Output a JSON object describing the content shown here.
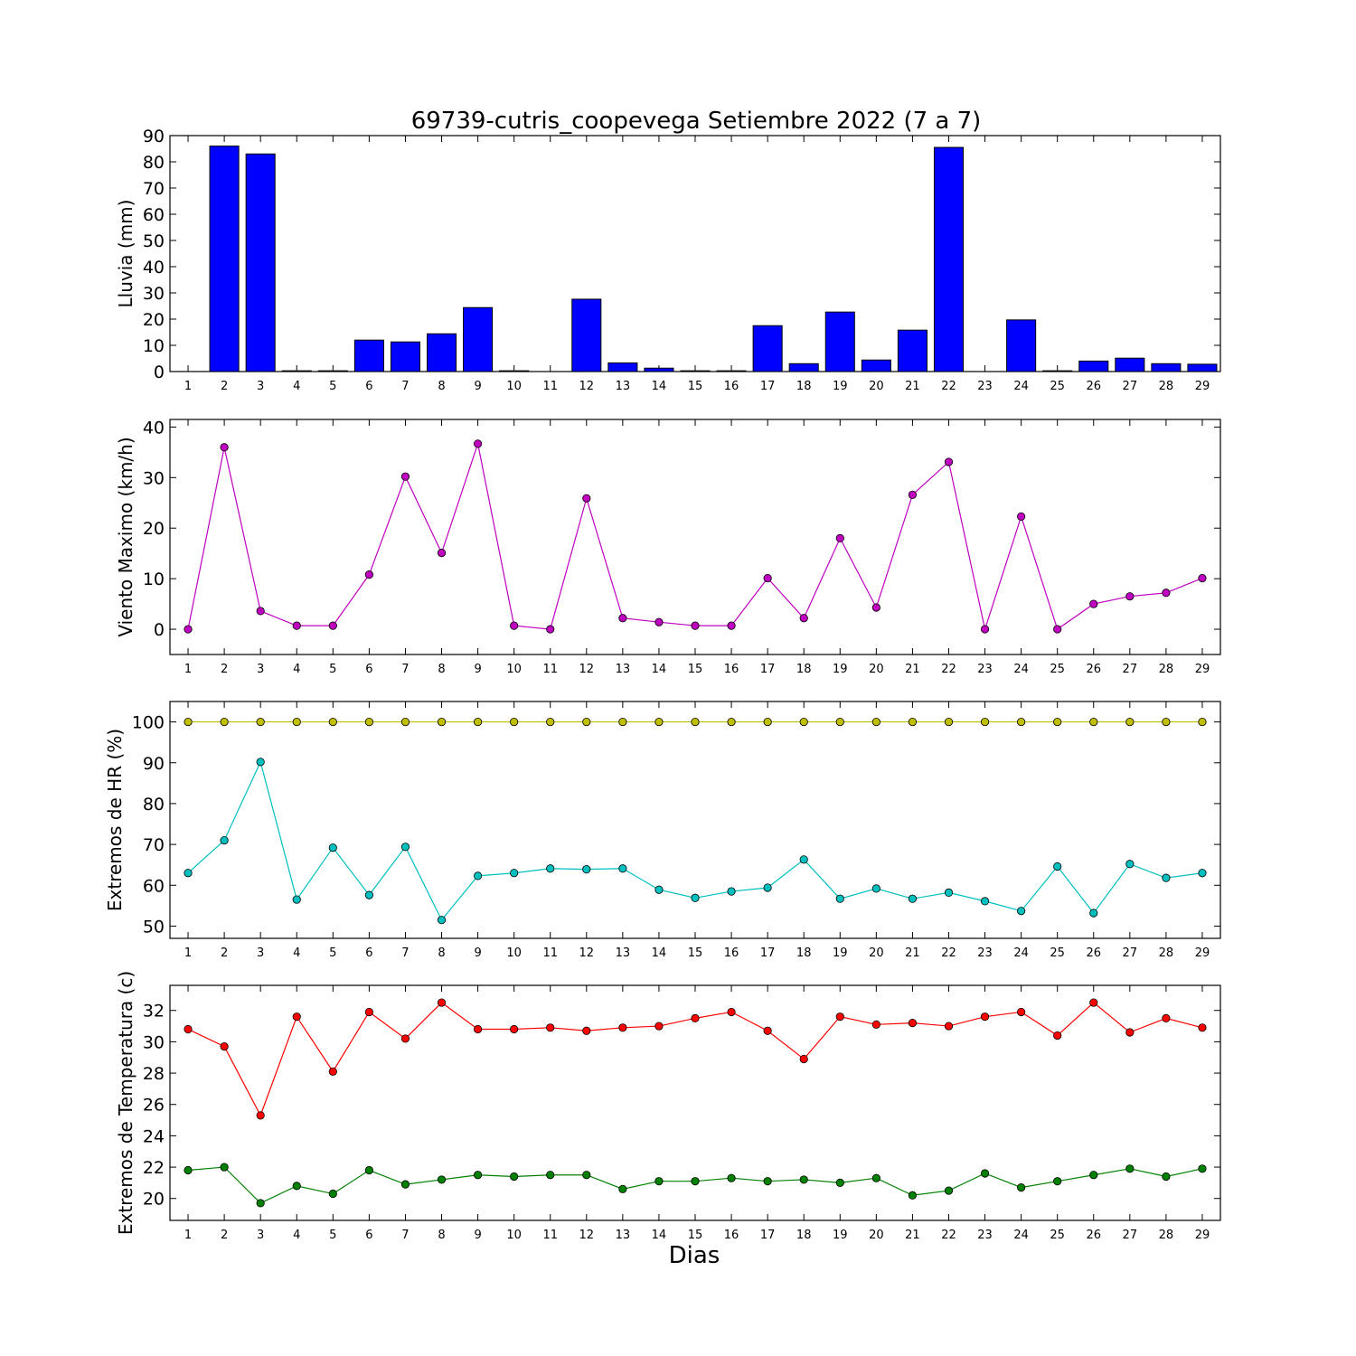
{
  "figure": {
    "title": "69739-cutris_coopevega Setiembre 2022  (7 a 7)",
    "xlabel": "Dias"
  },
  "chart_data": [
    {
      "type": "bar",
      "ylabel": "Lluvia (mm)",
      "ylim": [
        0,
        90
      ],
      "yticks": [
        0,
        10,
        20,
        30,
        40,
        50,
        60,
        70,
        80,
        90
      ],
      "categories": [
        1,
        2,
        3,
        4,
        5,
        6,
        7,
        8,
        9,
        10,
        11,
        12,
        13,
        14,
        15,
        16,
        17,
        18,
        19,
        20,
        21,
        22,
        23,
        24,
        25,
        26,
        27,
        28,
        29
      ],
      "series": [
        {
          "color": "#0000ff",
          "values": [
            0,
            86,
            83,
            0.3,
            0.3,
            12,
            11.3,
            14.4,
            24.4,
            0.3,
            0,
            27.6,
            3.3,
            1.3,
            0.3,
            0.3,
            17.5,
            3,
            22.7,
            4.4,
            15.8,
            85.5,
            0,
            19.7,
            0.3,
            4,
            5.1,
            3,
            2.8
          ]
        }
      ]
    },
    {
      "type": "line",
      "ylabel": "Viento Maximo (km/h)",
      "ylim": [
        -5,
        41.5
      ],
      "yticks": [
        0,
        10,
        20,
        30,
        40
      ],
      "x": [
        1,
        2,
        3,
        4,
        5,
        6,
        7,
        8,
        9,
        10,
        11,
        12,
        13,
        14,
        15,
        16,
        17,
        18,
        19,
        20,
        21,
        22,
        23,
        24,
        25,
        26,
        27,
        28,
        29
      ],
      "series": [
        {
          "color": "#bf00bf",
          "values": [
            0,
            36,
            3.6,
            0.7,
            0.7,
            10.8,
            30.2,
            15.1,
            36.7,
            0.7,
            0,
            25.9,
            2.2,
            1.4,
            0.7,
            0.7,
            10.1,
            2.2,
            18,
            4.3,
            26.6,
            33.1,
            0,
            22.3,
            0,
            5,
            6.5,
            7.2,
            10.1
          ]
        }
      ]
    },
    {
      "type": "line",
      "ylabel": "Extremos de HR (%)",
      "ylim": [
        47,
        105
      ],
      "yticks": [
        50,
        60,
        70,
        80,
        90,
        100
      ],
      "x": [
        1,
        2,
        3,
        4,
        5,
        6,
        7,
        8,
        9,
        10,
        11,
        12,
        13,
        14,
        15,
        16,
        17,
        18,
        19,
        20,
        21,
        22,
        23,
        24,
        25,
        26,
        27,
        28,
        29
      ],
      "series": [
        {
          "color": "#bfbf00",
          "values": [
            100,
            100,
            100,
            100,
            100,
            100,
            100,
            100,
            100,
            100,
            100,
            100,
            100,
            100,
            100,
            100,
            100,
            100,
            100,
            100,
            100,
            100,
            100,
            100,
            100,
            100,
            100,
            100,
            100
          ]
        },
        {
          "color": "#00bfbf",
          "values": [
            63,
            71,
            90.2,
            56.5,
            69.2,
            57.6,
            69.4,
            51.5,
            62.3,
            63,
            64.1,
            63.9,
            64.1,
            58.9,
            56.9,
            58.5,
            59.4,
            66.3,
            56.7,
            59.2,
            56.7,
            58.2,
            56.1,
            53.7,
            64.6,
            53.2,
            65.2,
            61.8,
            63
          ]
        }
      ]
    },
    {
      "type": "line",
      "ylabel": "Extremos de Temperatura (c)",
      "ylim": [
        18.6,
        33.6
      ],
      "yticks": [
        20,
        22,
        24,
        26,
        28,
        30,
        32
      ],
      "x": [
        1,
        2,
        3,
        4,
        5,
        6,
        7,
        8,
        9,
        10,
        11,
        12,
        13,
        14,
        15,
        16,
        17,
        18,
        19,
        20,
        21,
        22,
        23,
        24,
        25,
        26,
        27,
        28,
        29
      ],
      "series": [
        {
          "color": "#ff0000",
          "values": [
            30.8,
            29.7,
            25.3,
            31.6,
            28.1,
            31.9,
            30.2,
            32.5,
            30.8,
            30.8,
            30.9,
            30.7,
            30.9,
            31,
            31.5,
            31.9,
            30.7,
            28.9,
            31.6,
            31.1,
            31.2,
            31,
            31.6,
            31.9,
            30.4,
            32.5,
            30.6,
            31.5,
            30.9
          ]
        },
        {
          "color": "#008000",
          "values": [
            21.8,
            22,
            19.7,
            20.8,
            20.3,
            21.8,
            20.9,
            21.2,
            21.5,
            21.4,
            21.5,
            21.5,
            20.6,
            21.1,
            21.1,
            21.3,
            21.1,
            21.2,
            21,
            21.3,
            20.2,
            20.5,
            21.6,
            20.7,
            21.1,
            21.5,
            21.9,
            21.4,
            21.9
          ]
        }
      ]
    }
  ]
}
